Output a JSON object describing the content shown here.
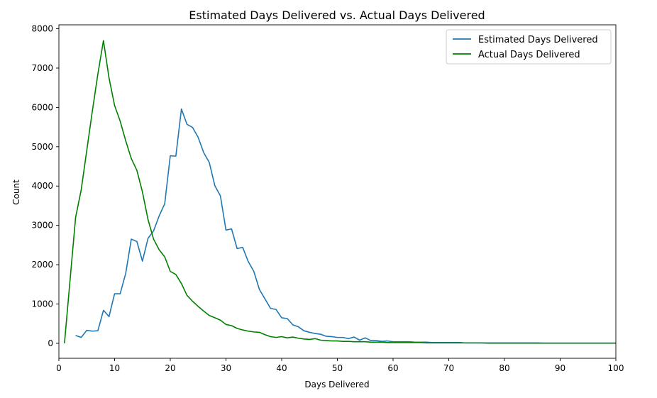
{
  "chart_data": {
    "type": "line",
    "title": "Estimated Days Delivered vs. Actual Days Delivered",
    "xlabel": "Days Delivered",
    "ylabel": "Count",
    "xlim": [
      0,
      100
    ],
    "ylim": [
      -380,
      8100
    ],
    "xticks": [
      0,
      10,
      20,
      30,
      40,
      50,
      60,
      70,
      80,
      90,
      100
    ],
    "yticks": [
      0,
      1000,
      2000,
      3000,
      4000,
      5000,
      6000,
      7000,
      8000
    ],
    "grid": false,
    "legend_position": "top-right",
    "series": [
      {
        "name": "Estimated Days Delivered",
        "color": "#1f77b4",
        "x": [
          3,
          4,
          5,
          6,
          7,
          8,
          9,
          10,
          11,
          12,
          13,
          14,
          15,
          16,
          17,
          18,
          19,
          20,
          21,
          22,
          23,
          24,
          25,
          26,
          27,
          28,
          29,
          30,
          31,
          32,
          33,
          34,
          35,
          36,
          37,
          38,
          39,
          40,
          41,
          42,
          43,
          44,
          45,
          46,
          47,
          48,
          49,
          50,
          51,
          52,
          53,
          54,
          55,
          56,
          57,
          58,
          59,
          60,
          61,
          62,
          63,
          64,
          65,
          66,
          67,
          68,
          69,
          70,
          71,
          72,
          73,
          74,
          75,
          76,
          77,
          78,
          79,
          80,
          81,
          82,
          83,
          84,
          85,
          86,
          87,
          88,
          89,
          90,
          91,
          92,
          93,
          94,
          95,
          96,
          97,
          98,
          99,
          100
        ],
        "values": [
          200,
          150,
          330,
          310,
          320,
          840,
          680,
          1260,
          1260,
          1780,
          2650,
          2590,
          2090,
          2670,
          2860,
          3240,
          3550,
          4770,
          4760,
          5960,
          5570,
          5490,
          5240,
          4850,
          4600,
          4010,
          3750,
          2880,
          2910,
          2410,
          2440,
          2080,
          1830,
          1370,
          1130,
          890,
          860,
          650,
          630,
          470,
          420,
          320,
          280,
          250,
          230,
          180,
          170,
          150,
          150,
          120,
          160,
          80,
          140,
          70,
          70,
          50,
          60,
          40,
          40,
          40,
          40,
          30,
          30,
          30,
          20,
          20,
          20,
          20,
          20,
          20,
          10,
          10,
          10,
          10,
          10,
          10,
          10,
          10,
          10,
          10,
          10,
          10,
          10,
          10,
          5,
          5,
          5,
          5,
          5,
          5,
          5,
          5,
          5,
          5,
          5,
          5,
          5,
          5
        ]
      },
      {
        "name": "Actual Days Delivered",
        "color": "#008000",
        "x": [
          1,
          2,
          3,
          4,
          5,
          6,
          7,
          8,
          9,
          10,
          11,
          12,
          13,
          14,
          15,
          16,
          17,
          18,
          19,
          20,
          21,
          22,
          23,
          24,
          25,
          26,
          27,
          28,
          29,
          30,
          31,
          32,
          33,
          34,
          35,
          36,
          37,
          38,
          39,
          40,
          41,
          42,
          43,
          44,
          45,
          46,
          47,
          48,
          49,
          50,
          51,
          52,
          53,
          54,
          55,
          56,
          57,
          58,
          59,
          60,
          61,
          62,
          63,
          64,
          65,
          66,
          67,
          68,
          69,
          70,
          71,
          72,
          73,
          74,
          75,
          76,
          77,
          78,
          79,
          80,
          81,
          82,
          83,
          84,
          85,
          86,
          87,
          88,
          89,
          90,
          91,
          92,
          93,
          94,
          95,
          96,
          97,
          98,
          99,
          100
        ],
        "values": [
          0,
          1600,
          3200,
          3900,
          4900,
          5900,
          6850,
          7700,
          6750,
          6050,
          5650,
          5150,
          4700,
          4400,
          3850,
          3150,
          2650,
          2380,
          2200,
          1830,
          1750,
          1520,
          1220,
          1070,
          940,
          820,
          710,
          650,
          590,
          480,
          450,
          380,
          340,
          310,
          290,
          280,
          220,
          170,
          150,
          170,
          140,
          160,
          130,
          110,
          100,
          120,
          80,
          70,
          60,
          60,
          50,
          50,
          40,
          40,
          40,
          30,
          30,
          30,
          20,
          20,
          20,
          20,
          20,
          20,
          20,
          10,
          10,
          10,
          10,
          10,
          10,
          10,
          10,
          10,
          10,
          10,
          5,
          5,
          5,
          5,
          5,
          5,
          5,
          5,
          5,
          5,
          5,
          5,
          5,
          5,
          5,
          5,
          5,
          5,
          5,
          5,
          5,
          5,
          5,
          5
        ]
      }
    ]
  }
}
